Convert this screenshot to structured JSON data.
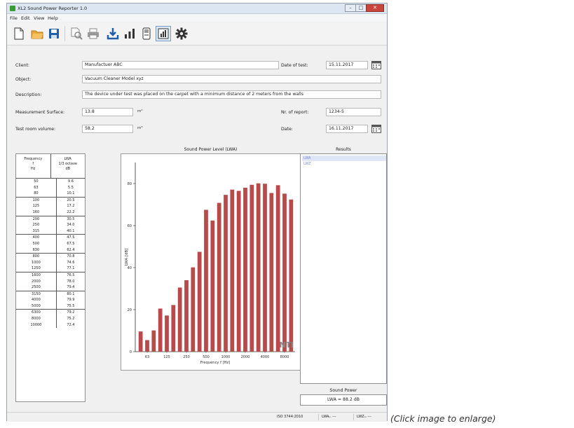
{
  "window": {
    "title": "XL2 Sound Power Reporter 1.0"
  },
  "menu": [
    {
      "label": "File",
      "key": "file"
    },
    {
      "label": "Edit",
      "key": "edit"
    },
    {
      "label": "View",
      "key": "view"
    },
    {
      "label": "Help",
      "key": "help"
    }
  ],
  "toolbar": {
    "icons": [
      "new-document-icon",
      "open-folder-icon",
      "save-disk-icon",
      "print-preview-icon",
      "printer-icon",
      "download-icon",
      "bar-levels-icon",
      "device-icon",
      "chart-view-icon",
      "settings-gear-icon"
    ],
    "accent": "#1e5fa8"
  },
  "form": {
    "client_label": "Client:",
    "client_value": "Manufactuer ABC",
    "date_of_test_label": "Date of test:",
    "date_of_test_value": "15.11.2017",
    "object_label": "Object:",
    "object_value": "Vacuum Cleaner Model xyz",
    "description_label": "Description:",
    "description_value": "The device under test was placed on the carpet with a minimum distance of 2 meters from the walls",
    "surface_label": "Measurement Surface:",
    "surface_value": "13.8",
    "surface_unit": "m²",
    "report_no_label": "Nr. of report:",
    "report_no_value": "1234-5",
    "volume_label": "Test room volume:",
    "volume_value": "58.2",
    "volume_unit": "m³",
    "date_label": "Date:",
    "date_value": "16.11.2017"
  },
  "freq_table": {
    "col1": [
      "Frequency",
      "f",
      "Hz"
    ],
    "col2": [
      "LWA",
      "1/3 octave",
      "dB"
    ],
    "rows": [
      [
        "50",
        "9.6"
      ],
      [
        "63",
        "5.5"
      ],
      [
        "80",
        "10.1"
      ],
      [
        "100",
        "20.5"
      ],
      [
        "125",
        "17.2"
      ],
      [
        "160",
        "22.2"
      ],
      [
        "200",
        "30.5"
      ],
      [
        "250",
        "34.0"
      ],
      [
        "315",
        "40.1"
      ],
      [
        "400",
        "47.5"
      ],
      [
        "500",
        "67.5"
      ],
      [
        "630",
        "62.4"
      ],
      [
        "800",
        "70.8"
      ],
      [
        "1000",
        "74.6"
      ],
      [
        "1250",
        "77.1"
      ],
      [
        "1600",
        "76.5"
      ],
      [
        "2000",
        "78.0"
      ],
      [
        "2500",
        "79.4"
      ],
      [
        "3150",
        "80.1"
      ],
      [
        "4000",
        "79.9"
      ],
      [
        "5000",
        "75.5"
      ],
      [
        "6300",
        "79.2"
      ],
      [
        "8000",
        "75.2"
      ],
      [
        "10000",
        "72.4"
      ]
    ]
  },
  "chart_data": {
    "type": "bar",
    "title": "Sound Power Level (LWA)",
    "xlabel": "Frequency f [Hz]",
    "ylabel": "LWA [dB]",
    "ylim": [
      0,
      90
    ],
    "yticks": [
      0,
      20,
      40,
      60,
      80
    ],
    "xtick_labels": [
      "63",
      "125",
      "250",
      "500",
      "1000",
      "2000",
      "4000",
      "8000"
    ],
    "categories": [
      "50",
      "63",
      "80",
      "100",
      "125",
      "160",
      "200",
      "250",
      "315",
      "400",
      "500",
      "630",
      "800",
      "1000",
      "1250",
      "1600",
      "2000",
      "2500",
      "3150",
      "4000",
      "5000",
      "6300",
      "8000",
      "10000"
    ],
    "values": [
      9.6,
      5.5,
      10.1,
      20.5,
      17.2,
      22.2,
      30.5,
      34.0,
      40.1,
      47.5,
      67.5,
      62.4,
      70.8,
      74.6,
      77.1,
      76.5,
      78.0,
      79.4,
      80.1,
      79.9,
      75.5,
      79.2,
      75.2,
      72.4
    ],
    "bar_color": "#b84a4a",
    "grid": false,
    "watermark": "NTi"
  },
  "results": {
    "title": "Results",
    "items": [
      "LWA",
      "LWZ"
    ],
    "sound_power_label": "Sound Power",
    "sound_power_value": "LWA = 88.2 dB"
  },
  "status": {
    "standard": "ISO 3744:2010",
    "lwa": "LWAₘ ---",
    "lwz": "LWZₘ ---"
  },
  "caption": "(Click image to enlarge)"
}
